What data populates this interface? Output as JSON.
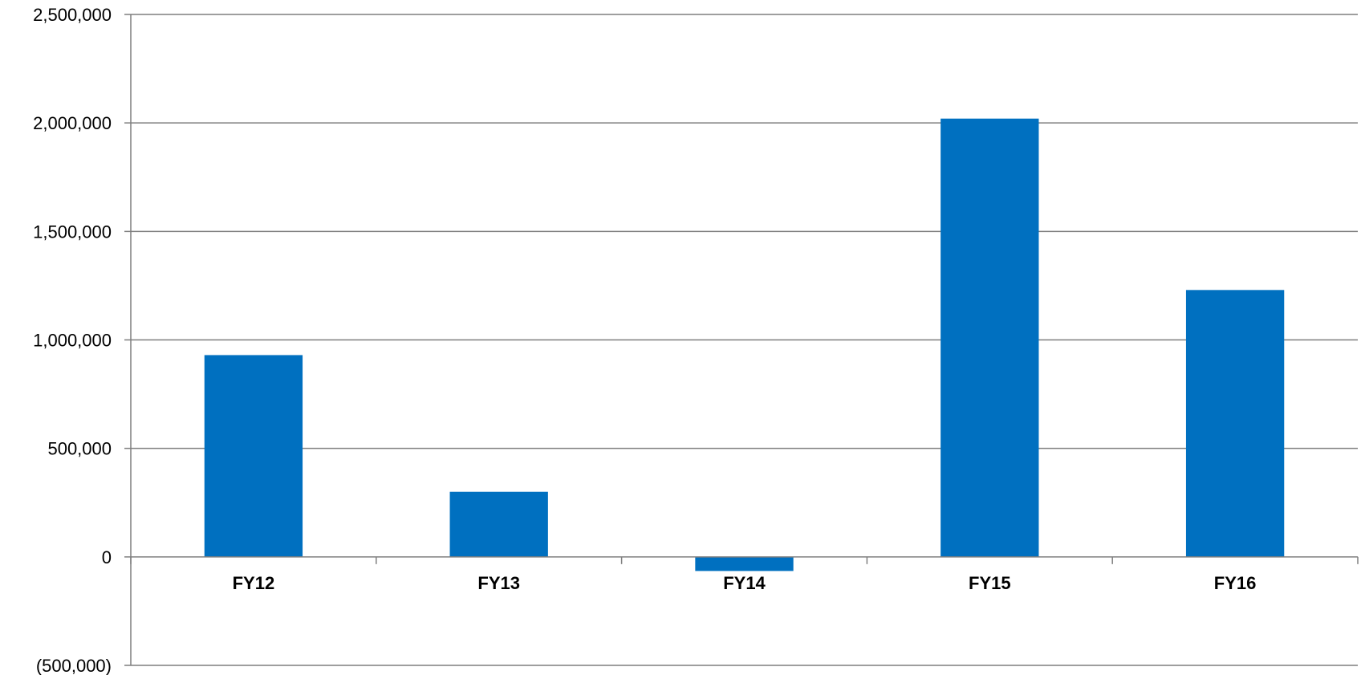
{
  "chart_data": {
    "type": "bar",
    "categories": [
      "FY12",
      "FY13",
      "FY14",
      "FY15",
      "FY16"
    ],
    "values": [
      930000,
      300000,
      -65000,
      2020000,
      1230000
    ],
    "ylim": [
      -500000,
      2500000
    ],
    "yticks": [
      2500000,
      2000000,
      1500000,
      1000000,
      500000,
      0,
      -500000
    ],
    "ytick_labels": [
      "2,500,000",
      "2,000,000",
      "1,500,000",
      "1,000,000",
      "500,000",
      "0",
      "(500,000)"
    ],
    "title": "",
    "xlabel": "",
    "ylabel": "",
    "grid": true,
    "legend": "none",
    "colors": {
      "bar": "#0070C0",
      "grid": "#7F7F7F",
      "axis": "#7F7F7F"
    }
  }
}
